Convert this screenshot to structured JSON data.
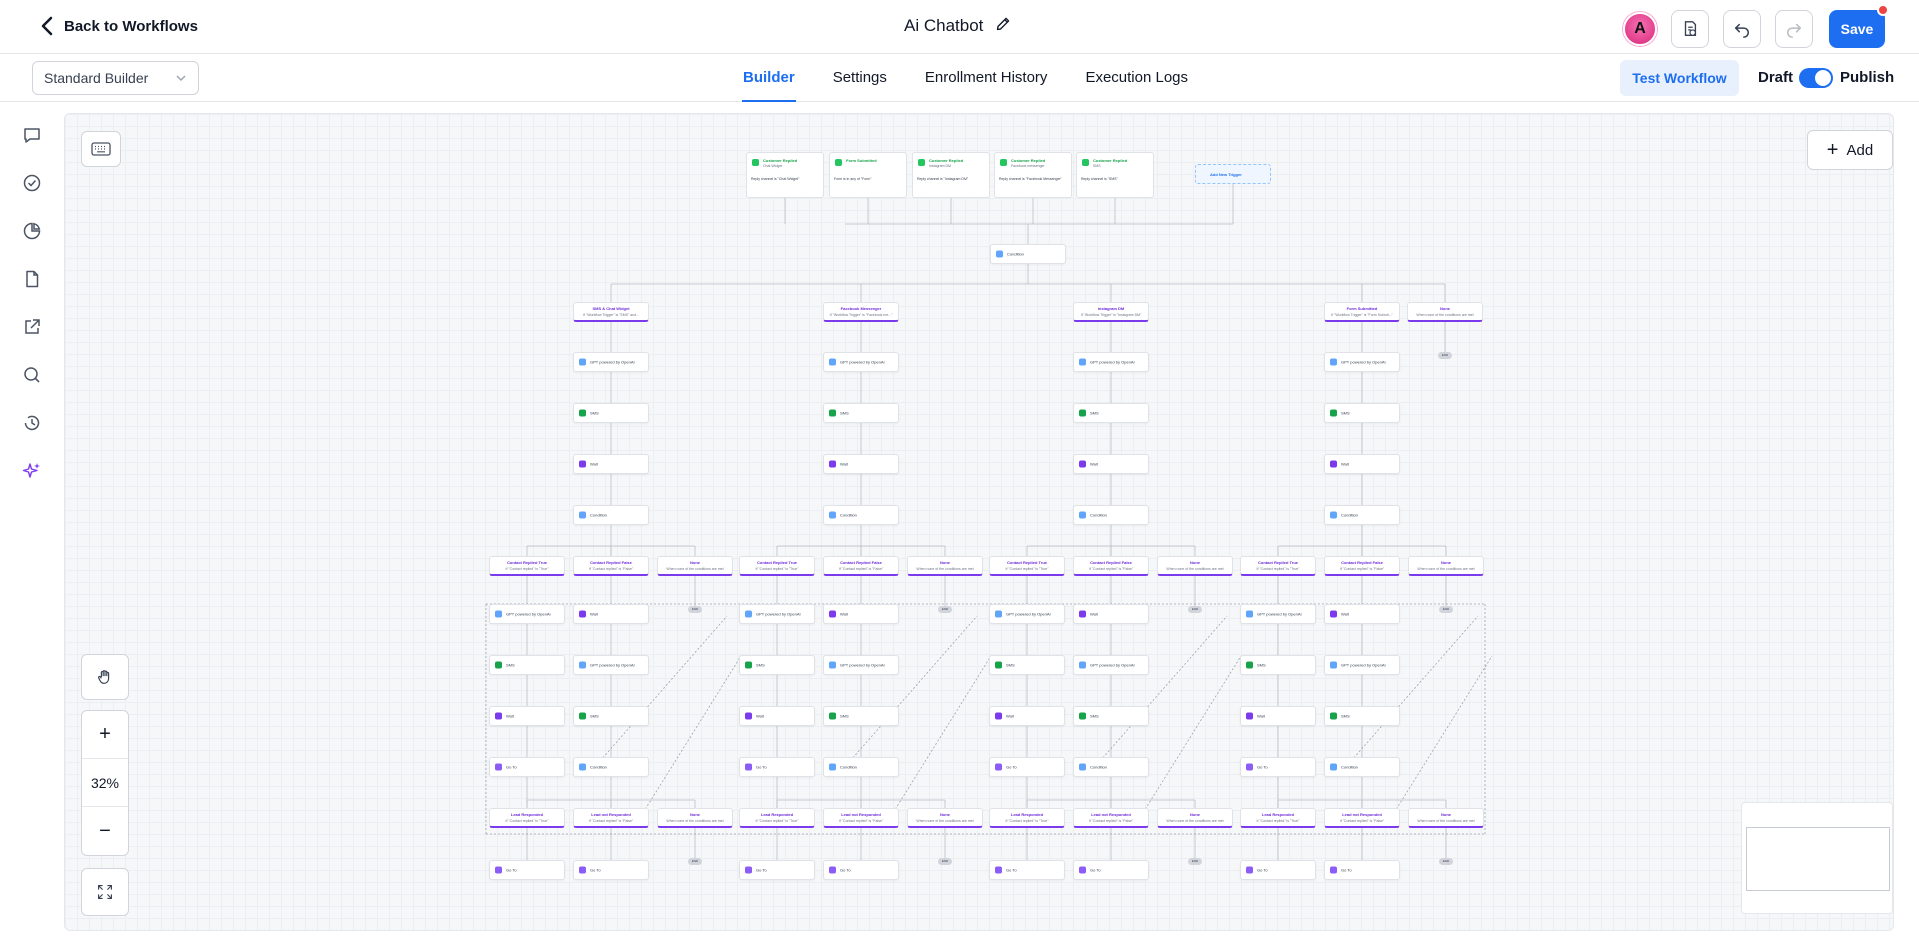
{
  "header": {
    "back_label": "Back to Workflows",
    "title": "Ai Chatbot",
    "save_label": "Save"
  },
  "subnav": {
    "builder_select": "Standard Builder",
    "tabs": [
      {
        "label": "Builder",
        "active": true
      },
      {
        "label": "Settings",
        "active": false
      },
      {
        "label": "Enrollment History",
        "active": false
      },
      {
        "label": "Execution Logs",
        "active": false
      }
    ],
    "test_label": "Test Workflow",
    "draft_label": "Draft",
    "publish_label": "Publish",
    "publish_toggle_on": true
  },
  "rail_icons": [
    "chat-icon",
    "check-circle-icon",
    "pie-chart-icon",
    "document-icon",
    "external-link-icon",
    "search-icon",
    "history-icon",
    "sparkle-icon"
  ],
  "canvas": {
    "add_label": "Add",
    "zoom_level": "32%",
    "triggers": [
      {
        "title": "Customer Replied",
        "sub": "Chat Widget",
        "text": "Reply channel is \"Chat Widget\""
      },
      {
        "title": "Form Submitted",
        "sub": "",
        "text": "Form is in any of \"Form\""
      },
      {
        "title": "Customer Replied",
        "sub": "Instagram DM",
        "text": "Reply channel is \"Instagram DM\""
      },
      {
        "title": "Customer Replied",
        "sub": "Facebook messenger",
        "text": "Reply channel is \"Facebook Messenger\""
      },
      {
        "title": "Customer Replied",
        "sub": "SMS",
        "text": "Reply channel is \"SMS\""
      }
    ],
    "add_trigger_label": "Add New Trigger",
    "root_condition": "Condition",
    "branches": [
      {
        "title": "SMS & Chat Widget",
        "sub": "If \"Workflow Trigger\" is \"SMS\" and..."
      },
      {
        "title": "Facebook Messenger",
        "sub": "If \"Workflow Trigger\" is \"Facebook me...\""
      },
      {
        "title": "Instagram DM",
        "sub": "If \"Workflow Trigger\" is \"Instagram DM\""
      },
      {
        "title": "Form Submitted",
        "sub": "If \"Workflow Trigger\" is \"Form Submit...\""
      },
      {
        "title": "None",
        "sub": "When none of the conditions are met"
      }
    ],
    "step_labels": {
      "gpt": "GPT powered by OpenAI",
      "sms": "SMS",
      "wait": "Wait",
      "condition": "Condition",
      "goto": "Go To",
      "end": "END"
    },
    "reply_branches": [
      {
        "title": "Contact Replied True",
        "sub": "If \"Contact replied\" is \"True\""
      },
      {
        "title": "Contact Replied False",
        "sub": "If \"Contact replied\" is \"False\""
      },
      {
        "title": "None",
        "sub": "When none of the conditions are met"
      }
    ],
    "lead_branches": [
      {
        "title": "Lead Responded",
        "sub": "If \"Contact replied\" is \"True\""
      },
      {
        "title": "Lead not Responded",
        "sub": "If \"Contact replied\" is \"False\""
      },
      {
        "title": "None",
        "sub": "When none of the conditions are met"
      }
    ]
  },
  "colors": {
    "accent": "#1d6ef0",
    "branch": "#7c3aed",
    "trigger": "#22c55e",
    "danger": "#ef4444"
  }
}
